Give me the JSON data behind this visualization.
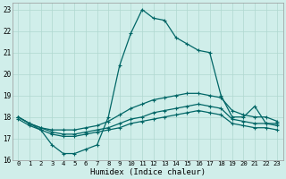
{
  "title": "",
  "xlabel": "Humidex (Indice chaleur)",
  "xlim": [
    -0.5,
    23.5
  ],
  "ylim": [
    16,
    23.3
  ],
  "yticks": [
    16,
    17,
    18,
    19,
    20,
    21,
    22,
    23
  ],
  "xticks": [
    0,
    1,
    2,
    3,
    4,
    5,
    6,
    7,
    8,
    9,
    10,
    11,
    12,
    13,
    14,
    15,
    16,
    17,
    18,
    19,
    20,
    21,
    22,
    23
  ],
  "background_color": "#d0eeea",
  "grid_color": "#b0d8d0",
  "line_color": "#006666",
  "series": {
    "line1": [
      18.0,
      17.7,
      17.4,
      16.7,
      16.3,
      16.3,
      16.5,
      16.7,
      18.0,
      20.4,
      21.9,
      23.0,
      22.6,
      22.5,
      21.7,
      21.4,
      21.1,
      21.0,
      19.0,
      18.0,
      18.0,
      18.5,
      17.7,
      17.7
    ],
    "line2": [
      18.0,
      17.7,
      17.5,
      17.4,
      17.4,
      17.4,
      17.5,
      17.6,
      17.8,
      18.1,
      18.4,
      18.6,
      18.8,
      18.9,
      19.0,
      19.1,
      19.1,
      19.0,
      18.9,
      18.3,
      18.1,
      18.0,
      18.0,
      17.8
    ],
    "line3": [
      18.0,
      17.7,
      17.5,
      17.3,
      17.2,
      17.2,
      17.3,
      17.4,
      17.5,
      17.7,
      17.9,
      18.0,
      18.2,
      18.3,
      18.4,
      18.5,
      18.6,
      18.5,
      18.4,
      17.9,
      17.8,
      17.7,
      17.7,
      17.6
    ],
    "line4": [
      17.9,
      17.6,
      17.4,
      17.2,
      17.1,
      17.1,
      17.2,
      17.3,
      17.4,
      17.5,
      17.7,
      17.8,
      17.9,
      18.0,
      18.1,
      18.2,
      18.3,
      18.2,
      18.1,
      17.7,
      17.6,
      17.5,
      17.5,
      17.4
    ]
  },
  "markers_on": [
    0,
    1,
    2,
    3,
    4,
    5,
    6,
    7,
    8,
    9,
    10,
    11,
    12,
    13,
    14,
    15,
    16,
    17,
    18,
    19,
    20,
    21,
    22,
    23
  ]
}
